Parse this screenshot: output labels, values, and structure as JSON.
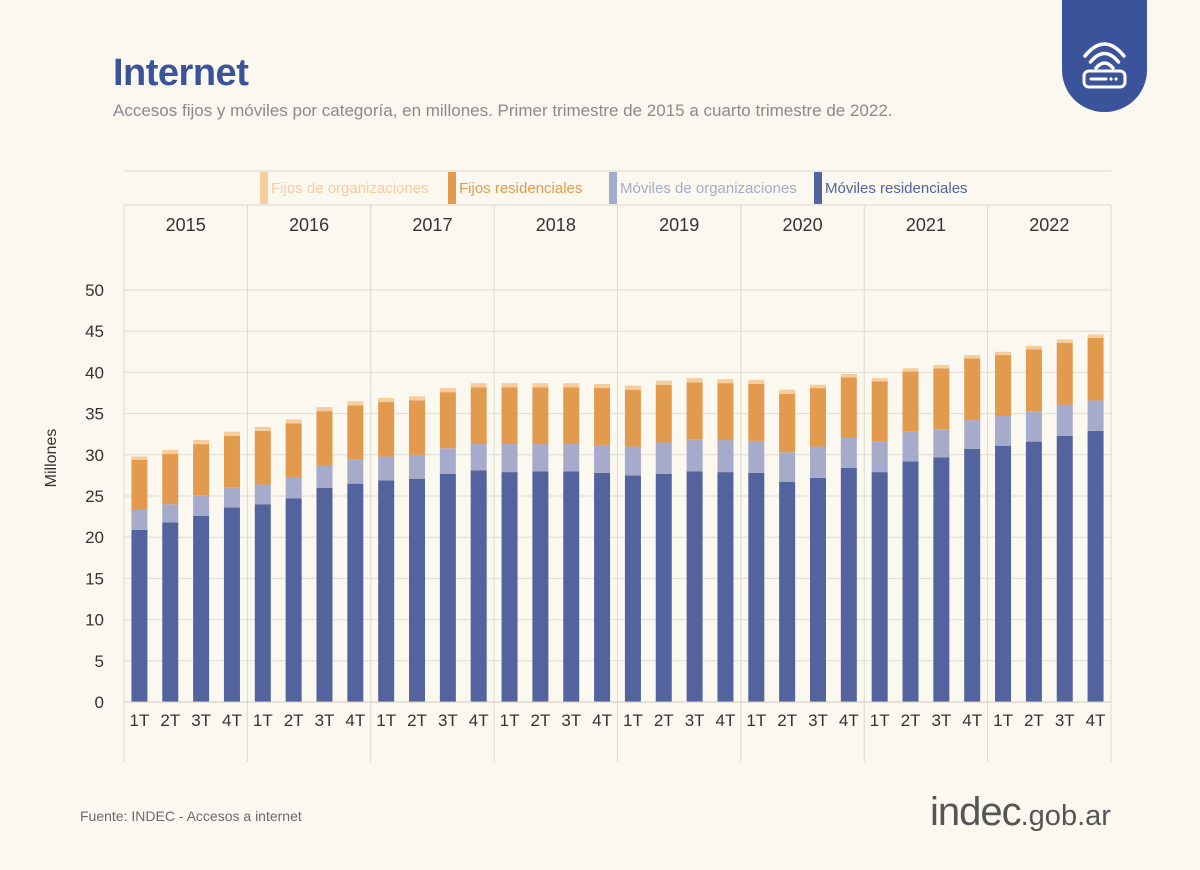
{
  "page": {
    "title": "Internet",
    "subtitle": "Accesos fijos y móviles por categoría, en millones. Primer trimestre de 2015 a cuarto trimestre de 2022.",
    "source": "Fuente: INDEC - Accesos a internet",
    "logo_text": "indec",
    "logo_domain": ".gob.ar",
    "badge_icon": "wifi-router-icon"
  },
  "colors": {
    "title": "#3a539b",
    "moviles_residenciales": "#53639d",
    "moviles_organizaciones": "#a6abcb",
    "fijos_residenciales": "#e29a4f",
    "fijos_organizaciones": "#f6cd9b"
  },
  "chart_data": {
    "type": "bar",
    "stacked": true,
    "title": "Internet",
    "xlabel": "",
    "ylabel": "Millones",
    "ylim": [
      0,
      50
    ],
    "yticks": [
      0,
      5,
      10,
      15,
      20,
      25,
      30,
      35,
      40,
      45,
      50
    ],
    "grid": true,
    "legend_position": "top",
    "years": [
      "2015",
      "2016",
      "2017",
      "2018",
      "2019",
      "2020",
      "2021",
      "2022"
    ],
    "quarter_labels": [
      "1T",
      "2T",
      "3T",
      "4T"
    ],
    "series": [
      {
        "name": "Móviles residenciales",
        "color": "#53639d",
        "values": [
          20.9,
          21.8,
          22.6,
          23.6,
          24.0,
          24.7,
          26.0,
          26.5,
          26.9,
          27.1,
          27.7,
          28.1,
          27.9,
          28.0,
          28.0,
          27.8,
          27.5,
          27.7,
          28.0,
          27.9,
          27.8,
          26.7,
          27.2,
          28.4,
          27.9,
          29.2,
          29.7,
          30.7,
          31.1,
          31.6,
          32.3,
          32.9
        ]
      },
      {
        "name": "Móviles de organizaciones",
        "color": "#a6abcb",
        "values": [
          2.4,
          2.2,
          2.5,
          2.4,
          2.4,
          2.5,
          2.7,
          2.9,
          2.9,
          2.9,
          3.1,
          3.2,
          3.4,
          3.3,
          3.3,
          3.4,
          3.5,
          3.8,
          3.9,
          3.9,
          3.9,
          3.6,
          3.8,
          3.7,
          3.7,
          3.6,
          3.4,
          3.5,
          3.6,
          3.7,
          3.8,
          3.7
        ]
      },
      {
        "name": "Fijos residenciales",
        "color": "#e29a4f",
        "values": [
          6.1,
          6.1,
          6.2,
          6.3,
          6.5,
          6.6,
          6.6,
          6.6,
          6.6,
          6.6,
          6.8,
          6.9,
          6.9,
          6.9,
          6.9,
          6.9,
          6.9,
          7.0,
          6.9,
          6.9,
          6.9,
          7.1,
          7.1,
          7.3,
          7.3,
          7.3,
          7.4,
          7.5,
          7.4,
          7.5,
          7.5,
          7.6
        ]
      },
      {
        "name": "Fijos de organizaciones",
        "color": "#f6cd9b",
        "values": [
          0.4,
          0.5,
          0.5,
          0.5,
          0.5,
          0.5,
          0.5,
          0.5,
          0.5,
          0.5,
          0.5,
          0.5,
          0.5,
          0.5,
          0.5,
          0.5,
          0.5,
          0.5,
          0.5,
          0.5,
          0.5,
          0.5,
          0.4,
          0.4,
          0.4,
          0.4,
          0.4,
          0.4,
          0.4,
          0.4,
          0.4,
          0.4
        ]
      }
    ]
  }
}
